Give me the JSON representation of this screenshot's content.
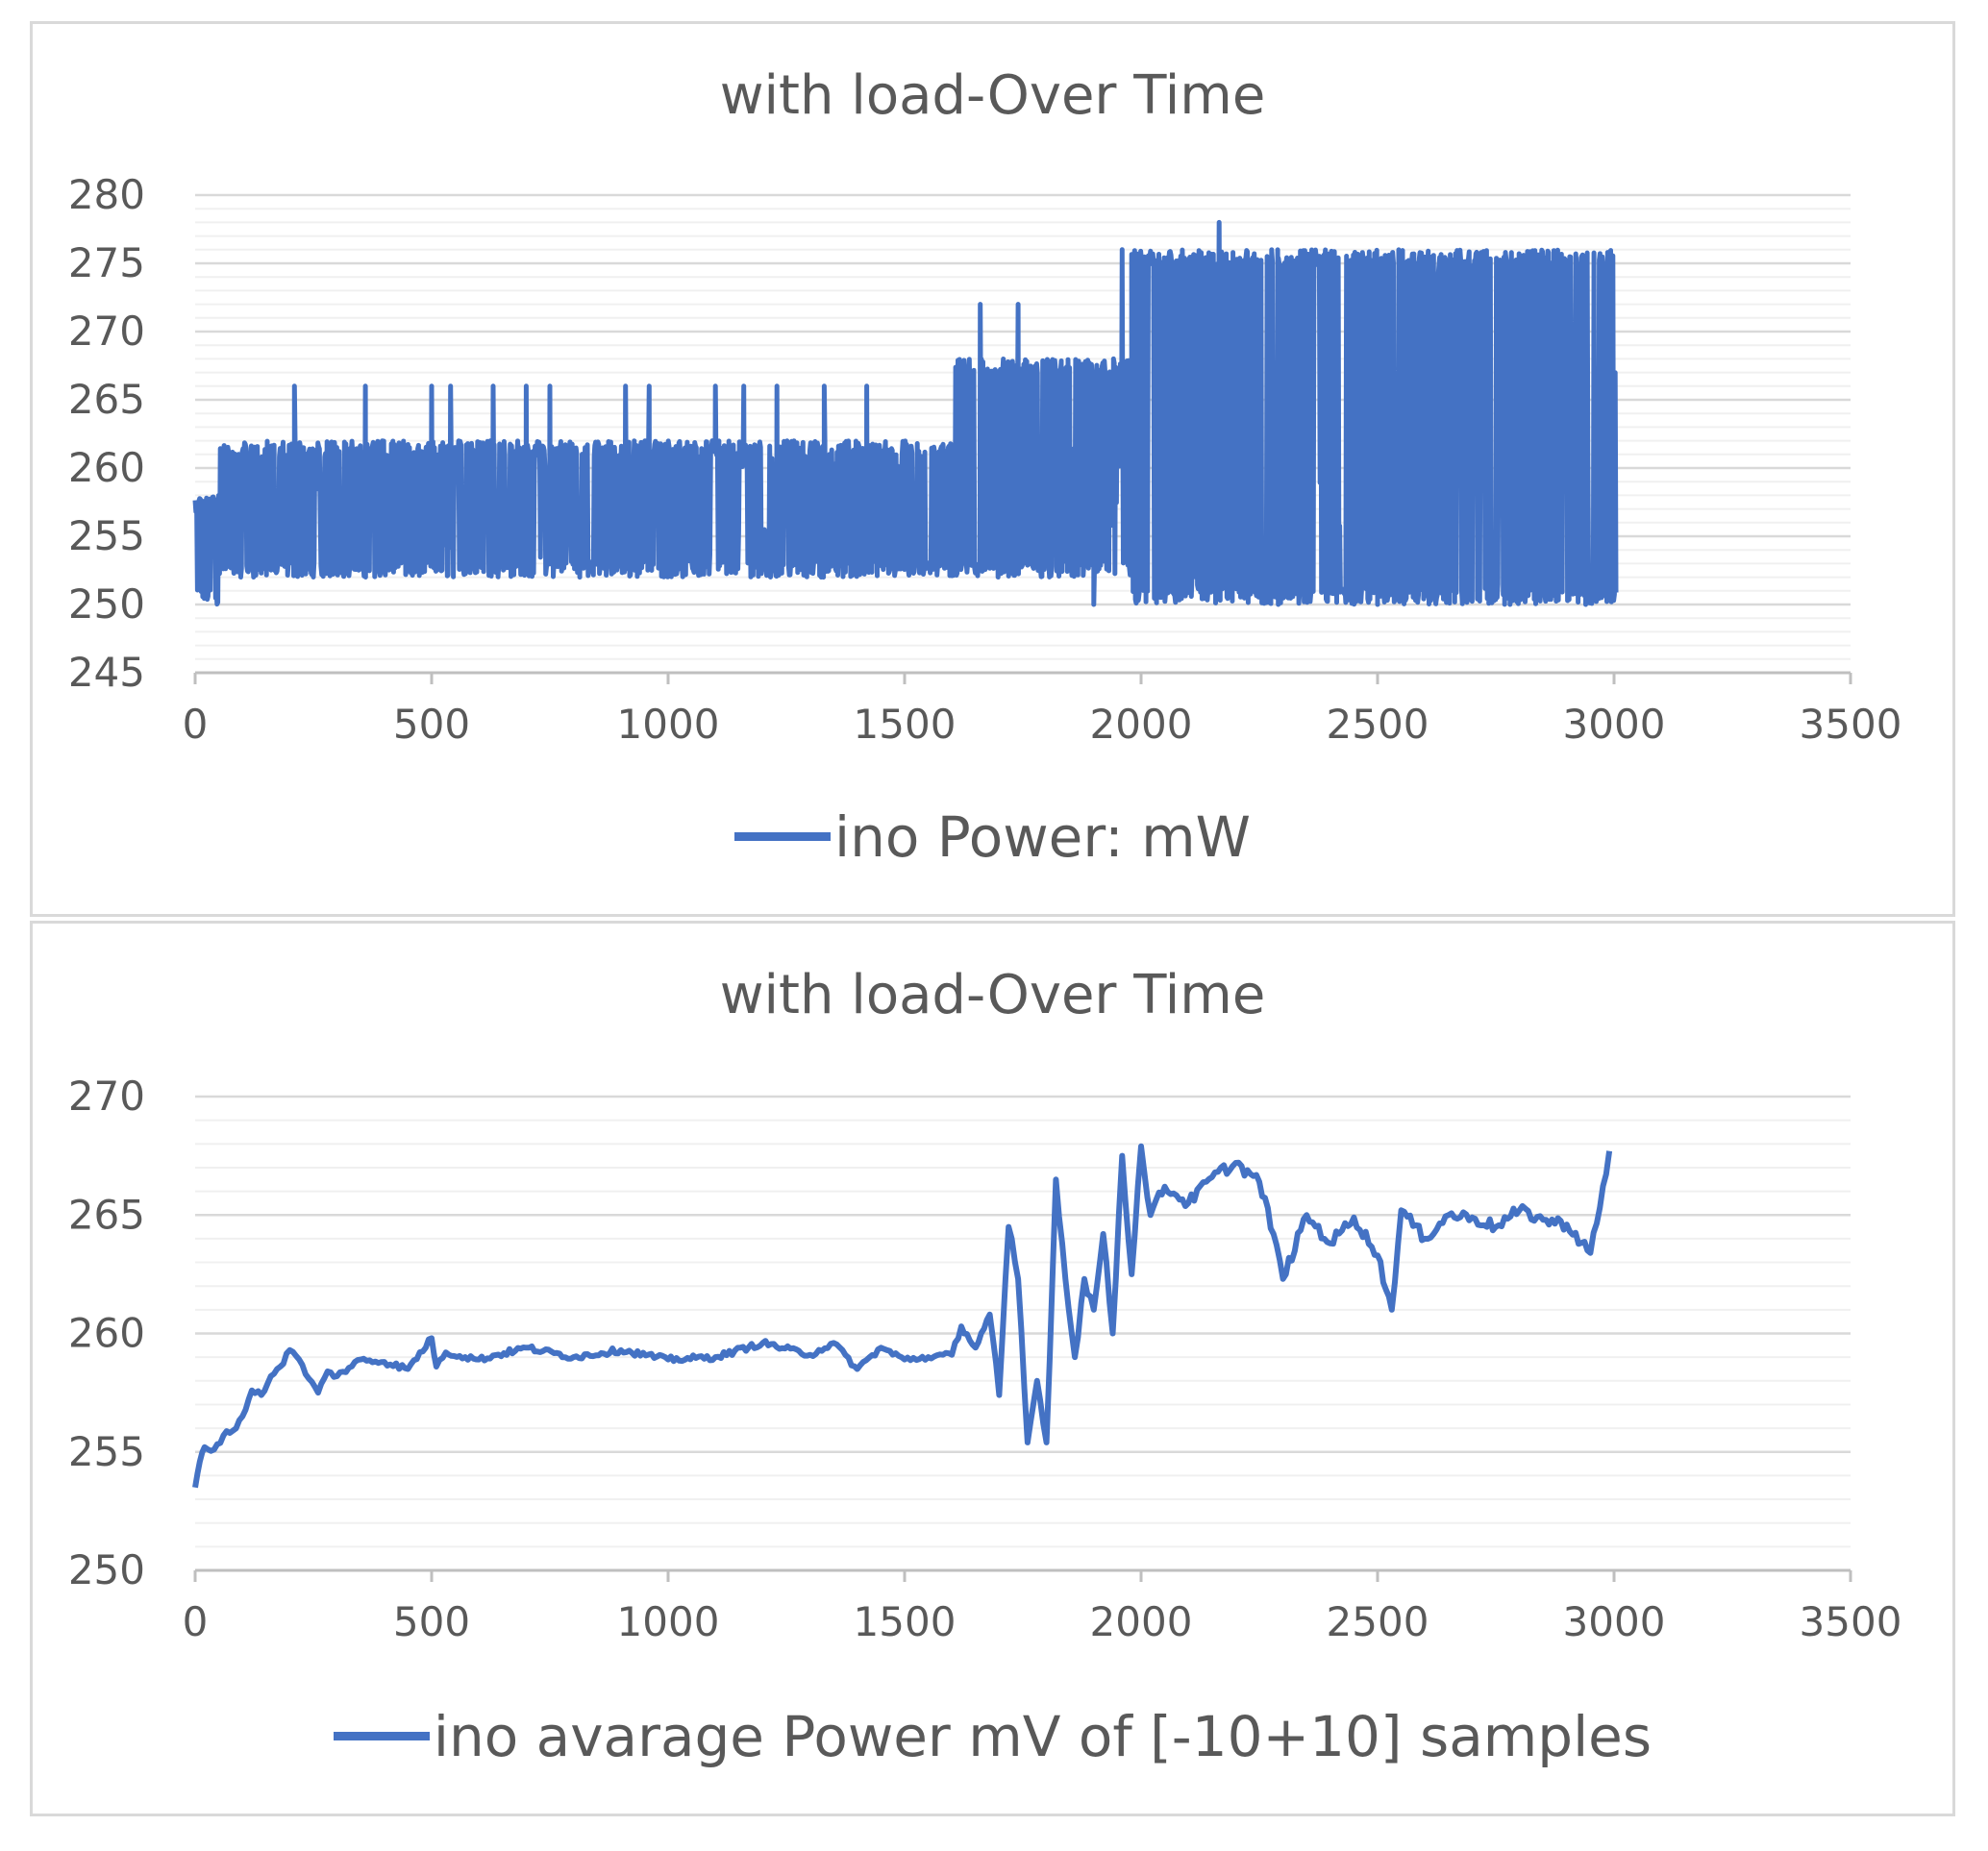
{
  "chart_data": [
    {
      "type": "line",
      "title": "with load-Over Time",
      "xlabel": "",
      "ylabel": "",
      "xlim": [
        0,
        3500
      ],
      "ylim": [
        245,
        280
      ],
      "x_ticks": [
        0,
        500,
        1000,
        1500,
        2000,
        2500,
        3000,
        3500
      ],
      "y_ticks": [
        245,
        250,
        255,
        260,
        265,
        270,
        275,
        280
      ],
      "minor_y_step": 1,
      "grid": true,
      "legend_position": "bottom",
      "color": "#4472c4",
      "series": [
        {
          "name": "ino Power: mW",
          "segments": [
            {
              "x_start": 0,
              "x_end": 50,
              "low": 250,
              "high": 258
            },
            {
              "x_start": 50,
              "x_end": 1600,
              "low": 252,
              "high": 262
            },
            {
              "x_start": 1600,
              "x_end": 1820,
              "low": 252,
              "high": 268
            },
            {
              "x_start": 1820,
              "x_end": 1980,
              "low": 252,
              "high": 268
            },
            {
              "x_start": 1980,
              "x_end": 3005,
              "low": 250,
              "high": 276
            }
          ],
          "spikes": [
            {
              "x": 210,
              "y": 266
            },
            {
              "x": 360,
              "y": 266
            },
            {
              "x": 500,
              "y": 266
            },
            {
              "x": 540,
              "y": 266
            },
            {
              "x": 630,
              "y": 266
            },
            {
              "x": 700,
              "y": 266
            },
            {
              "x": 750,
              "y": 266
            },
            {
              "x": 910,
              "y": 266
            },
            {
              "x": 960,
              "y": 266
            },
            {
              "x": 1100,
              "y": 266
            },
            {
              "x": 1160,
              "y": 266
            },
            {
              "x": 1230,
              "y": 266
            },
            {
              "x": 1330,
              "y": 266
            },
            {
              "x": 1420,
              "y": 266
            },
            {
              "x": 1660,
              "y": 272
            },
            {
              "x": 1740,
              "y": 272
            },
            {
              "x": 1960,
              "y": 276
            },
            {
              "x": 2165,
              "y": 278
            },
            {
              "x": 1900,
              "y": 250
            },
            {
              "x": 2290,
              "y": 250
            },
            {
              "x": 2500,
              "y": 250
            },
            {
              "x": 2780,
              "y": 250
            },
            {
              "x": 2940,
              "y": 250
            }
          ]
        }
      ]
    },
    {
      "type": "line",
      "title": "with load-Over Time",
      "xlabel": "",
      "ylabel": "",
      "xlim": [
        0,
        3500
      ],
      "ylim": [
        250,
        270
      ],
      "x_ticks": [
        0,
        500,
        1000,
        1500,
        2000,
        2500,
        3000,
        3500
      ],
      "y_ticks": [
        250,
        255,
        260,
        265,
        270
      ],
      "minor_y_step": 1,
      "grid": true,
      "legend_position": "bottom",
      "color": "#4472c4",
      "series": [
        {
          "name": "ino avarage Power mV of [-10+10] samples",
          "x": [
            0,
            10,
            20,
            40,
            60,
            80,
            100,
            120,
            140,
            160,
            180,
            200,
            220,
            240,
            260,
            280,
            300,
            350,
            400,
            450,
            500,
            510,
            530,
            600,
            700,
            800,
            900,
            1000,
            1100,
            1200,
            1300,
            1350,
            1400,
            1450,
            1500,
            1550,
            1600,
            1620,
            1650,
            1680,
            1700,
            1720,
            1740,
            1760,
            1780,
            1800,
            1820,
            1840,
            1860,
            1880,
            1900,
            1920,
            1940,
            1960,
            1980,
            2000,
            2020,
            2050,
            2100,
            2150,
            2200,
            2250,
            2280,
            2300,
            2350,
            2400,
            2450,
            2500,
            2530,
            2550,
            2600,
            2650,
            2700,
            2750,
            2800,
            2850,
            2900,
            2950,
            2970,
            2990
          ],
          "y": [
            253.5,
            254.6,
            255.2,
            255.1,
            255.7,
            255.9,
            256.5,
            257.6,
            257.4,
            258.2,
            258.6,
            259.3,
            258.9,
            258.1,
            257.5,
            258.4,
            258.2,
            258.9,
            258.8,
            258.5,
            259.8,
            258.6,
            259.2,
            258.9,
            259.4,
            259.0,
            259.3,
            258.9,
            259.0,
            259.6,
            259.1,
            259.6,
            258.5,
            259.4,
            258.9,
            259.0,
            259.1,
            260.3,
            259.4,
            260.8,
            257.4,
            264.5,
            262.3,
            255.4,
            258.0,
            255.4,
            266.5,
            262.3,
            259.0,
            262.3,
            261.0,
            264.2,
            260.0,
            267.5,
            262.5,
            267.9,
            265.0,
            266.2,
            265.5,
            266.6,
            267.2,
            266.4,
            264.2,
            262.3,
            265.0,
            263.8,
            264.9,
            263.3,
            261.0,
            265.2,
            264.0,
            265.0,
            264.9,
            264.5,
            265.2,
            264.8,
            264.6,
            263.4,
            265.3,
            267.7
          ]
        }
      ]
    }
  ]
}
